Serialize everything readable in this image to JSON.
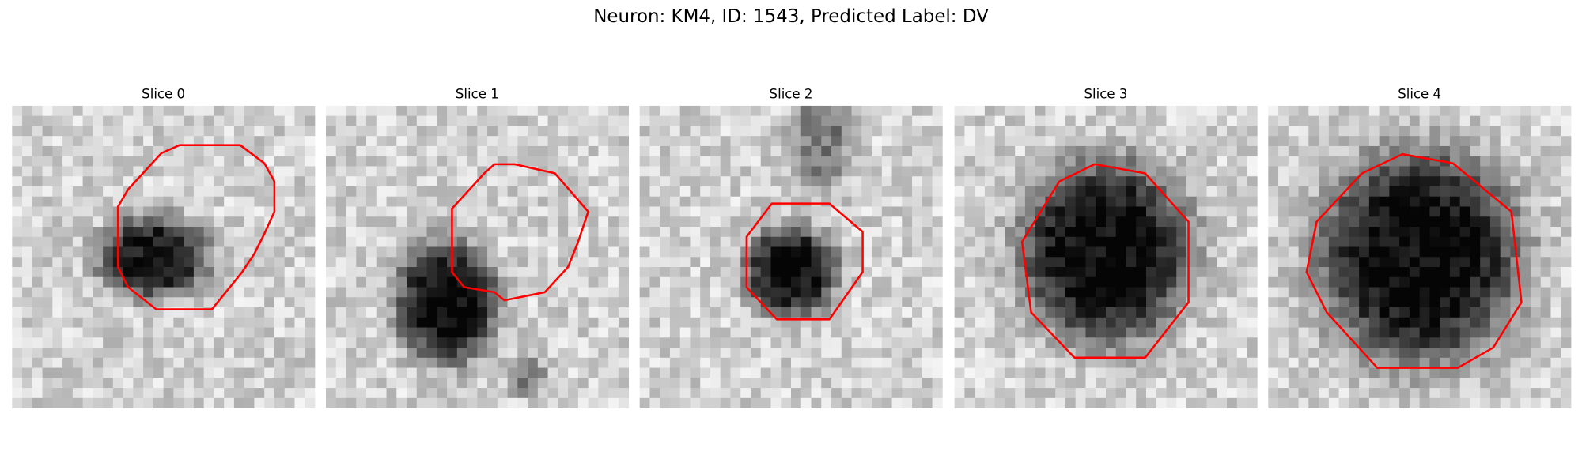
{
  "title": "Neuron: KM4, ID: 1543, Predicted Label: DV",
  "panels": [
    {
      "title": "Slice 0"
    },
    {
      "title": "Slice 1"
    },
    {
      "title": "Slice 2"
    },
    {
      "title": "Slice 3"
    },
    {
      "title": "Slice 4"
    }
  ]
}
